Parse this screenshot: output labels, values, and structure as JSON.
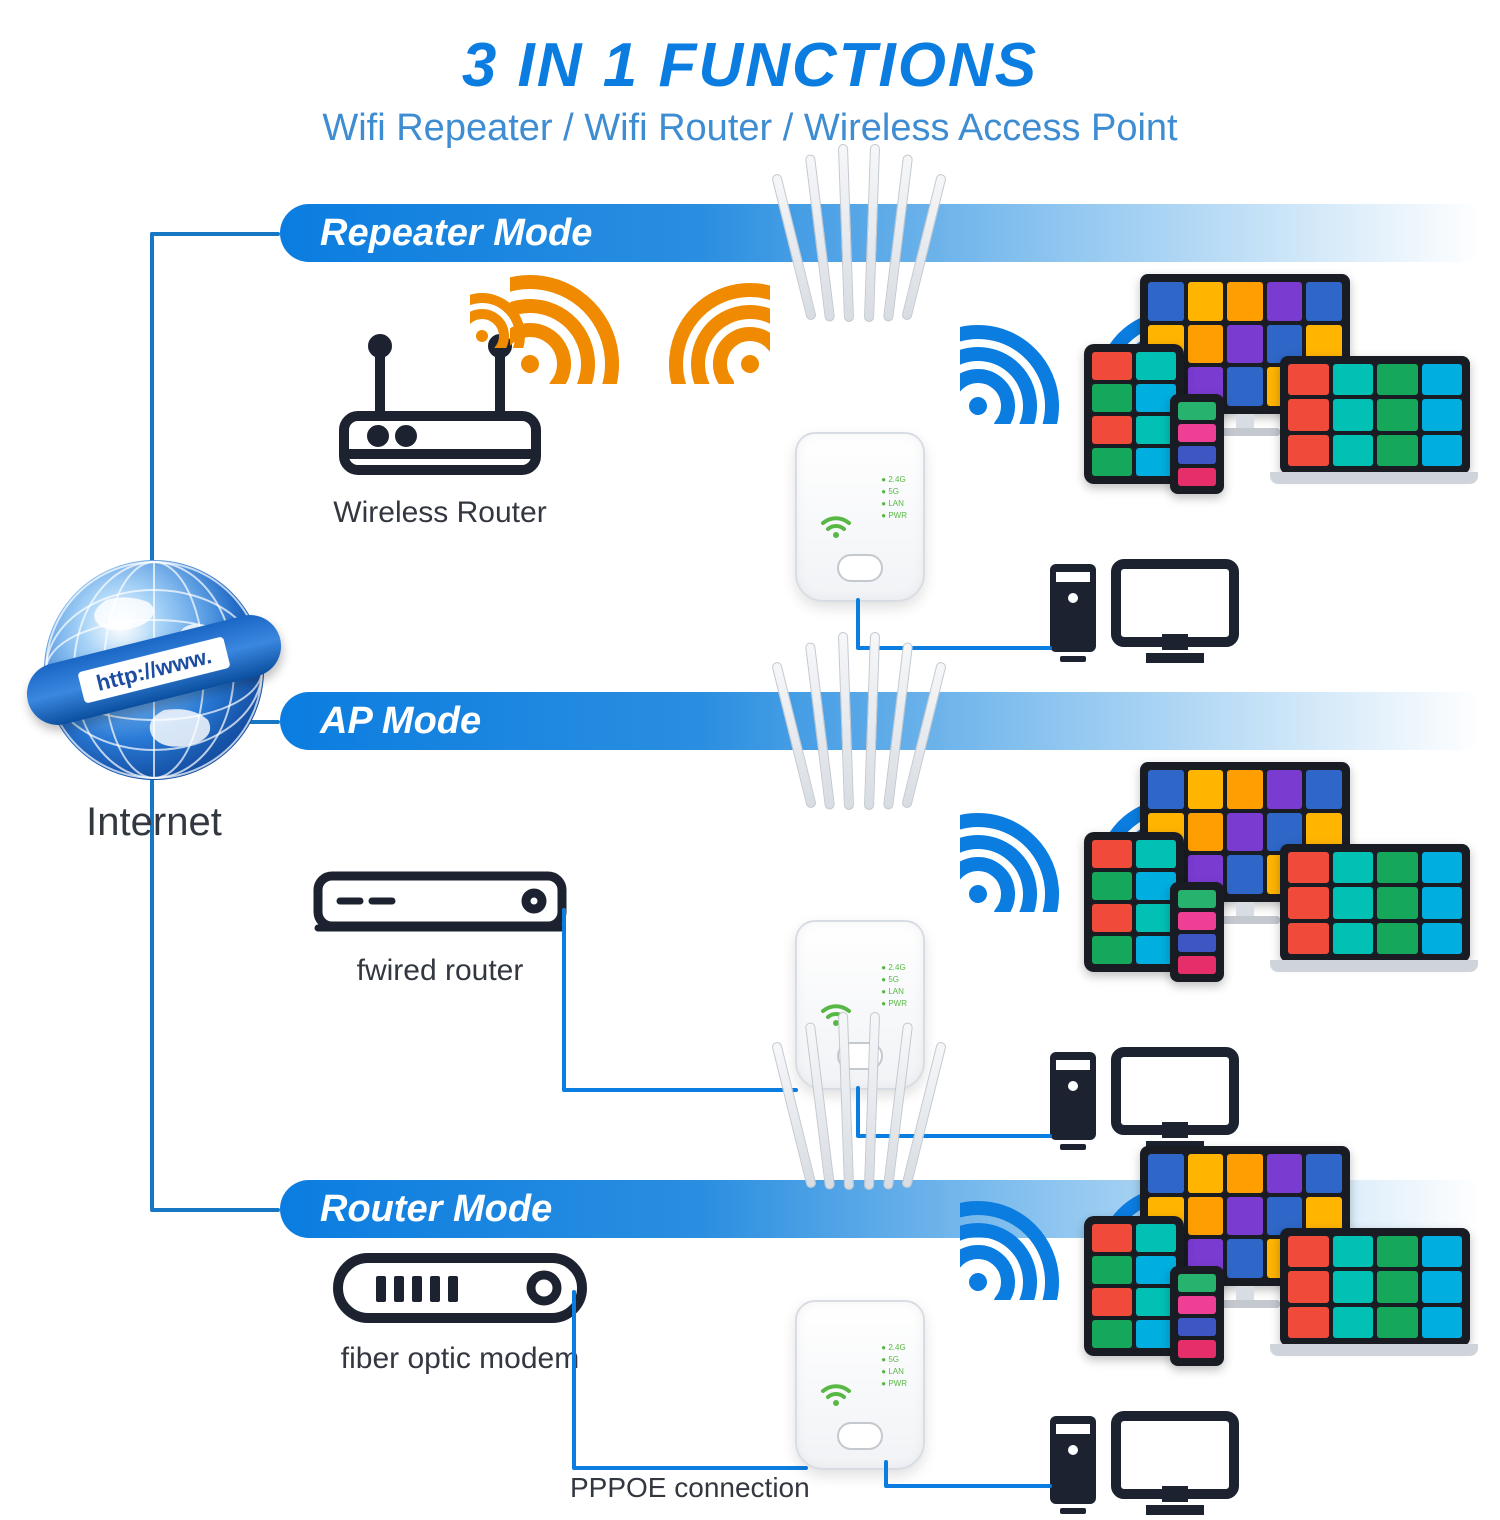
{
  "title": "3 IN 1 FUNCTIONS",
  "subtitle": "Wifi Repeater / Wifi Router / Wireless Access Point",
  "title_color": "#0b7de0",
  "subtitle_color": "#3e8cd1",
  "bar_gradient": [
    "#0b7de0",
    "#2a8ee0",
    "#8fc6f0",
    "#ffffff00"
  ],
  "line_color": "#1777c4",
  "text_color": "#333740",
  "globe": {
    "band_text": "http://www.",
    "label": "Internet"
  },
  "tile_colors": [
    "#ff9e00",
    "#e52e6a",
    "#00aee0",
    "#7a3bd0",
    "#27b36d",
    "#f04a3a",
    "#2e67c7",
    "#ef3f95",
    "#00c1b4",
    "#ffb400",
    "#3d56c4",
    "#15a85b"
  ],
  "modes": [
    {
      "name": "Repeater Mode",
      "source_label": "Wireless Router",
      "signal_in_color": "#f08a00",
      "signal_out_color": "#0b7de0",
      "wired_label": null
    },
    {
      "name": "AP Mode",
      "source_label": "fwired router",
      "signal_in_color": null,
      "signal_out_color": "#0b7de0",
      "wired_label": null
    },
    {
      "name": "Router Mode",
      "source_label": "fiber optic modem",
      "signal_in_color": null,
      "signal_out_color": "#0b7de0",
      "wired_label": "PPPOE connection"
    }
  ],
  "icon_stroke": "#1c2230",
  "extender_led_color": "#59b845"
}
